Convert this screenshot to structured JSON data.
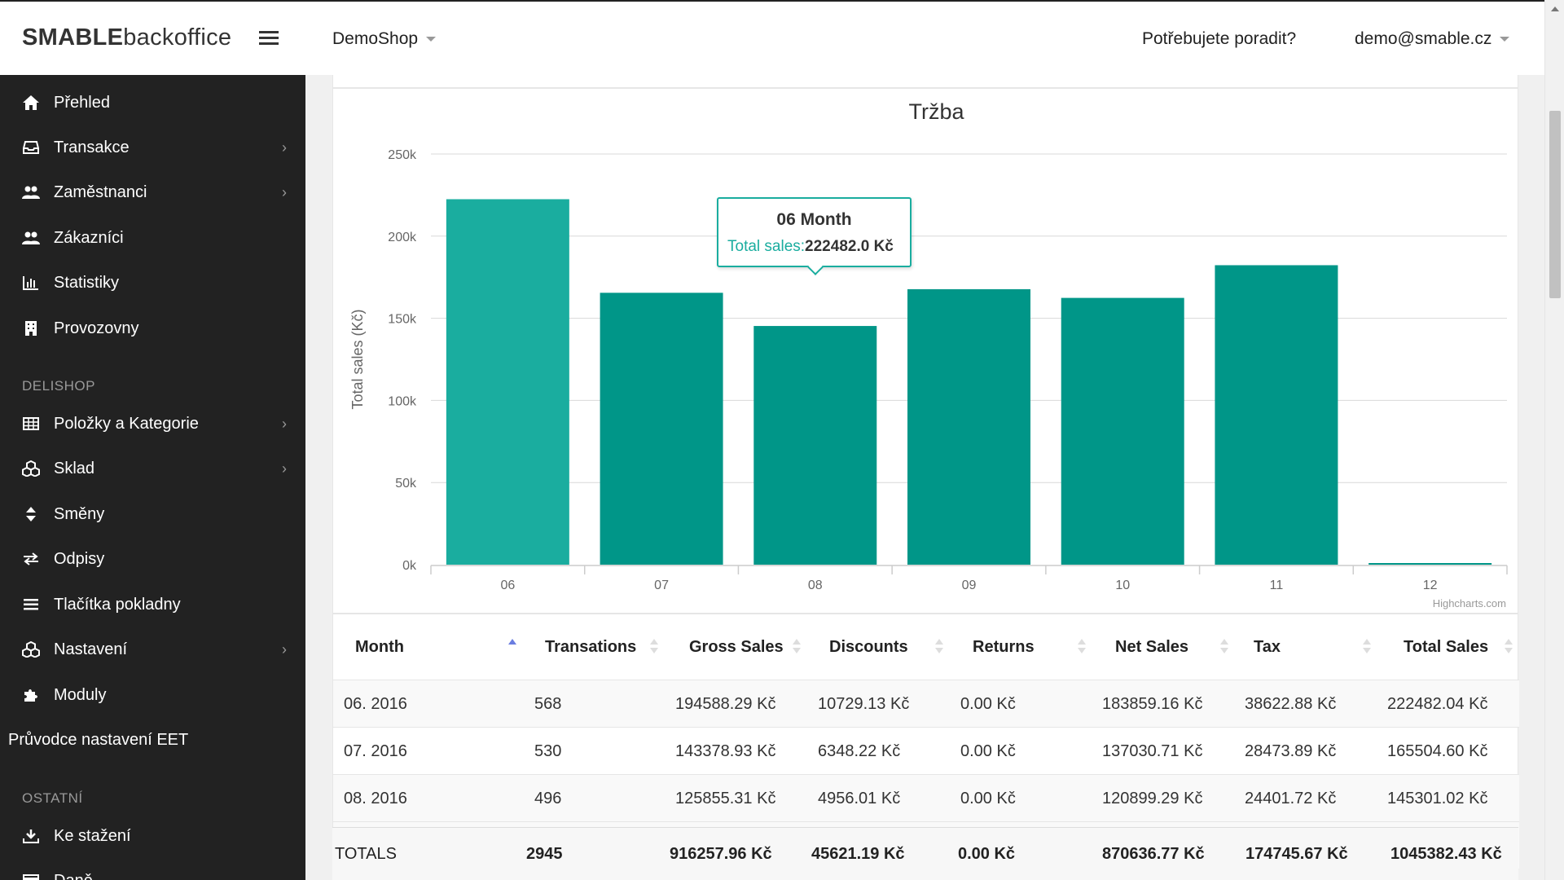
{
  "header": {
    "logo_bold": "SMABLE",
    "logo_light": "backoffice",
    "shop": "DemoShop",
    "help": "Potřebujete poradit?",
    "user": "demo@smable.cz"
  },
  "sidebar": {
    "items": [
      {
        "label": "Přehled",
        "icon": "home-icon"
      },
      {
        "label": "Transakce",
        "icon": "inbox-icon"
      },
      {
        "label": "Zaměstnanci",
        "icon": "users-icon"
      },
      {
        "label": "Zákazníci",
        "icon": "users-icon"
      },
      {
        "label": "Statistiky",
        "icon": "bar-chart-icon"
      },
      {
        "label": "Provozovny",
        "icon": "building-icon"
      }
    ],
    "section_delishop": "DELISHOP",
    "delishop_items": [
      {
        "label": "Položky a Kategorie",
        "icon": "table-icon"
      },
      {
        "label": "Sklad",
        "icon": "cubes-icon"
      },
      {
        "label": "Směny",
        "icon": "sort-icon"
      },
      {
        "label": "Odpisy",
        "icon": "exchange-icon"
      },
      {
        "label": "Tlačítka pokladny",
        "icon": "list-icon"
      },
      {
        "label": "Nastavení",
        "icon": "cubes-icon"
      },
      {
        "label": "Moduly",
        "icon": "puzzle-icon"
      }
    ],
    "eet": "Průvodce nastavení EET",
    "section_other": "OSTATNÍ",
    "other_items": [
      {
        "label": "Ke stažení",
        "icon": "download-icon"
      },
      {
        "label": "Daně",
        "icon": "credit-card-icon"
      }
    ]
  },
  "chart_data": {
    "type": "bar",
    "title": "Tržba",
    "ylabel": "Total sales (Kč)",
    "xlabel": "",
    "categories": [
      "06",
      "07",
      "08",
      "09",
      "10",
      "11",
      "12"
    ],
    "series": [
      {
        "name": "Total sales",
        "values": [
          222482.04,
          165504.6,
          145301.02,
          167700,
          162400,
          182300,
          0
        ]
      }
    ],
    "ylim": [
      0,
      250000
    ],
    "yticks": [
      "0k",
      "50k",
      "100k",
      "150k",
      "200k",
      "250k"
    ],
    "grid": true,
    "legend": "none",
    "bar_color": "#009688",
    "highlight_color": "#1aad9f",
    "credit": "Highcharts.com"
  },
  "tooltip": {
    "title": "06 Month",
    "name": "Total sales:",
    "value": "222482.0 Kč"
  },
  "table": {
    "headers": [
      "Month",
      "Transations",
      "Gross Sales",
      "Discounts",
      "Returns",
      "Net Sales",
      "Tax",
      "Total Sales"
    ],
    "rows": [
      [
        "06. 2016",
        "568",
        "194588.29 Kč",
        "10729.13 Kč",
        "0.00 Kč",
        "183859.16 Kč",
        "38622.88 Kč",
        "222482.04 Kč"
      ],
      [
        "07. 2016",
        "530",
        "143378.93 Kč",
        "6348.22 Kč",
        "0.00 Kč",
        "137030.71 Kč",
        "28473.89 Kč",
        "165504.60 Kč"
      ],
      [
        "08. 2016",
        "496",
        "125855.31 Kč",
        "4956.01 Kč",
        "0.00 Kč",
        "120899.29 Kč",
        "24401.72 Kč",
        "145301.02 Kč"
      ]
    ],
    "totals": [
      "TOTALS",
      "2945",
      "916257.96 Kč",
      "45621.19 Kč",
      "0.00 Kč",
      "870636.77 Kč",
      "174745.67 Kč",
      "1045382.43 Kč"
    ]
  }
}
